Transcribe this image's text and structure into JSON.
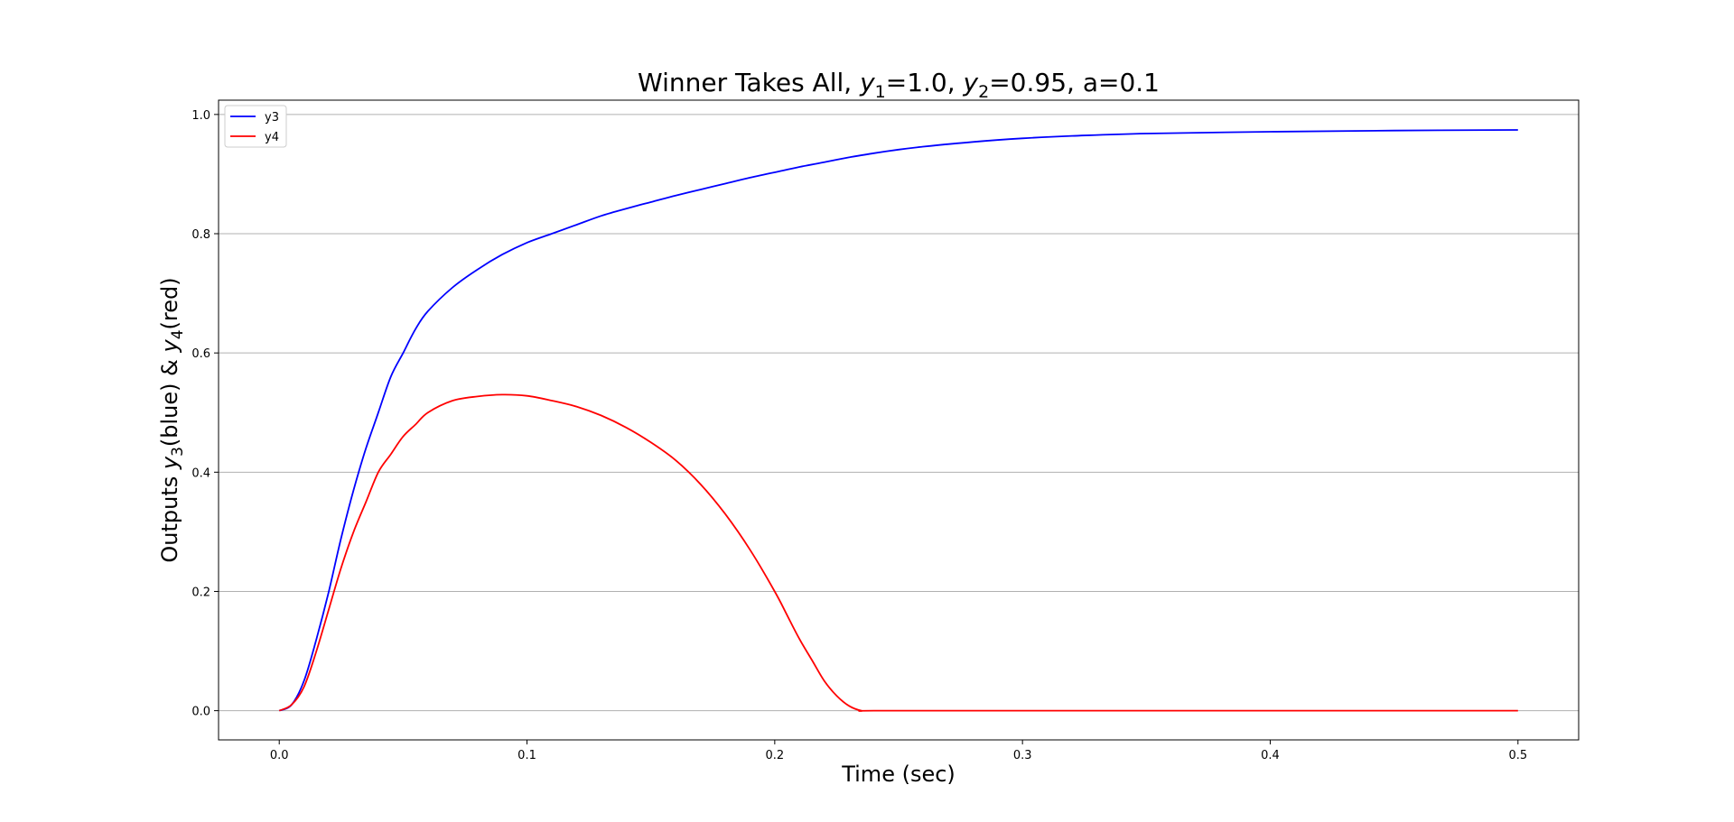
{
  "chart_data": {
    "type": "line",
    "title": {
      "prefix": "Winner Takes All, ",
      "y1_base": "y",
      "y1_sub": "1",
      "y1_value": "=1.0, ",
      "y2_base": "y",
      "y2_sub": "2",
      "y2_value": "=0.95, a=0.1"
    },
    "xlabel": "Time (sec)",
    "ylabel": {
      "prefix": "Outputs ",
      "y3_base": "y",
      "y3_sub": "3",
      "mid": "(blue) & ",
      "y4_base": "y",
      "y4_sub": "4",
      "suffix": "(red)"
    },
    "xlim": [
      -0.0245,
      0.5245
    ],
    "ylim": [
      -0.049,
      1.024
    ],
    "xticks": [
      0.0,
      0.1,
      0.2,
      0.3,
      0.4,
      0.5
    ],
    "xtick_labels": [
      "0.0",
      "0.1",
      "0.2",
      "0.3",
      "0.4",
      "0.5"
    ],
    "yticks": [
      0.0,
      0.2,
      0.4,
      0.6,
      0.8,
      1.0
    ],
    "ytick_labels": [
      "0.0",
      "0.2",
      "0.4",
      "0.6",
      "0.8",
      "1.0"
    ],
    "grid": "y-axis",
    "legend_position": "top-left",
    "series": [
      {
        "name": "y3",
        "color": "#0000ff",
        "x": [
          0.0,
          0.005,
          0.01,
          0.015,
          0.02,
          0.025,
          0.03,
          0.035,
          0.04,
          0.045,
          0.05,
          0.055,
          0.06,
          0.07,
          0.08,
          0.09,
          0.1,
          0.11,
          0.12,
          0.13,
          0.14,
          0.15,
          0.16,
          0.17,
          0.18,
          0.19,
          0.2,
          0.21,
          0.22,
          0.23,
          0.24,
          0.25,
          0.26,
          0.28,
          0.3,
          0.32,
          0.35,
          0.4,
          0.45,
          0.5
        ],
        "y": [
          0.0,
          0.01,
          0.05,
          0.12,
          0.2,
          0.29,
          0.37,
          0.44,
          0.5,
          0.56,
          0.6,
          0.64,
          0.67,
          0.71,
          0.74,
          0.765,
          0.785,
          0.8,
          0.815,
          0.83,
          0.842,
          0.853,
          0.864,
          0.874,
          0.884,
          0.894,
          0.903,
          0.912,
          0.92,
          0.928,
          0.935,
          0.941,
          0.946,
          0.954,
          0.96,
          0.964,
          0.968,
          0.971,
          0.973,
          0.974
        ]
      },
      {
        "name": "y4",
        "color": "#ff0000",
        "x": [
          0.0,
          0.005,
          0.01,
          0.015,
          0.02,
          0.025,
          0.03,
          0.035,
          0.04,
          0.045,
          0.05,
          0.055,
          0.06,
          0.07,
          0.08,
          0.09,
          0.1,
          0.11,
          0.12,
          0.13,
          0.14,
          0.15,
          0.16,
          0.17,
          0.18,
          0.19,
          0.2,
          0.205,
          0.21,
          0.215,
          0.22,
          0.225,
          0.23,
          0.235,
          0.24,
          0.3,
          0.4,
          0.5
        ],
        "y": [
          0.0,
          0.01,
          0.04,
          0.1,
          0.17,
          0.24,
          0.3,
          0.35,
          0.4,
          0.43,
          0.46,
          0.48,
          0.5,
          0.52,
          0.527,
          0.53,
          0.528,
          0.52,
          0.51,
          0.495,
          0.475,
          0.45,
          0.42,
          0.38,
          0.33,
          0.27,
          0.2,
          0.16,
          0.12,
          0.085,
          0.05,
          0.025,
          0.008,
          0.0,
          0.0,
          0.0,
          0.0,
          0.0
        ]
      }
    ]
  }
}
